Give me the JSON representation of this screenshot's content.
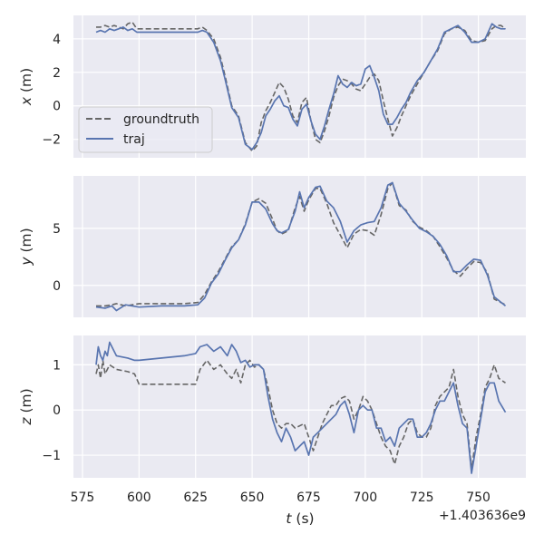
{
  "figure": {
    "xlabel_var": "t",
    "xlabel_unit": " (s)",
    "offset_label": "+1.403636e9",
    "x_ticks": [
      "575",
      "600",
      "625",
      "650",
      "675",
      "700",
      "725",
      "750"
    ],
    "legend": {
      "groundtruth": "groundtruth",
      "traj": "traj"
    },
    "colors": {
      "groundtruth": "#666666",
      "traj": "#5975b0",
      "panel_bg": "#eaeaf2",
      "grid": "#ffffff"
    }
  },
  "chart_data": [
    {
      "type": "line",
      "title": "",
      "xlabel": "",
      "ylabel_var": "x",
      "ylabel_unit": " (m)",
      "xlim": [
        571,
        771
      ],
      "ylim": [
        -3.1,
        5.4
      ],
      "y_ticks": [
        {
          "value": 4,
          "label": "4"
        },
        {
          "value": 2,
          "label": "2"
        },
        {
          "value": 0,
          "label": "0"
        },
        {
          "value": -2,
          "label": "−2"
        }
      ],
      "series": [
        {
          "name": "groundtruth",
          "style": "dashed",
          "x": [
            581,
            583,
            585,
            587,
            589,
            591,
            593,
            595,
            597,
            599,
            601,
            610,
            620,
            626,
            628,
            630,
            633,
            636,
            638,
            641,
            644,
            647,
            650,
            652,
            654,
            656,
            658,
            660,
            662,
            664,
            666,
            668,
            670,
            672,
            674,
            676,
            678,
            680,
            682,
            684,
            686,
            688,
            690,
            692,
            694,
            696,
            698,
            700,
            702,
            704,
            706,
            708,
            710,
            712,
            714,
            716,
            718,
            720,
            723,
            726,
            729,
            732,
            735,
            738,
            741,
            744,
            747,
            750,
            753,
            756,
            758,
            760,
            762
          ],
          "y": [
            4.7,
            4.7,
            4.8,
            4.7,
            4.8,
            4.7,
            4.6,
            4.9,
            5.0,
            4.6,
            4.6,
            4.6,
            4.6,
            4.6,
            4.7,
            4.5,
            4.0,
            2.9,
            1.8,
            0.0,
            -0.6,
            -2.2,
            -2.7,
            -2.4,
            -1.0,
            -0.3,
            0.2,
            0.8,
            1.4,
            1.1,
            0.4,
            -0.6,
            -1.0,
            0.2,
            0.5,
            -0.9,
            -2.0,
            -2.2,
            -1.5,
            -0.6,
            0.5,
            1.2,
            1.6,
            1.5,
            1.3,
            1.0,
            0.9,
            1.3,
            1.7,
            1.9,
            1.5,
            0.3,
            -0.8,
            -1.8,
            -1.3,
            -0.6,
            0.0,
            0.6,
            1.3,
            2.0,
            2.7,
            3.3,
            4.3,
            4.6,
            4.7,
            4.5,
            3.9,
            3.8,
            3.9,
            4.6,
            4.8,
            4.8,
            4.6
          ]
        },
        {
          "name": "traj",
          "style": "solid",
          "x": [
            581,
            583,
            585,
            587,
            589,
            591,
            593,
            595,
            597,
            599,
            601,
            610,
            620,
            626,
            628,
            630,
            633,
            636,
            638,
            641,
            644,
            647,
            650,
            652,
            654,
            656,
            658,
            660,
            662,
            664,
            666,
            668,
            670,
            672,
            674,
            676,
            678,
            680,
            682,
            684,
            686,
            688,
            690,
            692,
            694,
            696,
            698,
            700,
            702,
            704,
            706,
            708,
            710,
            712,
            714,
            716,
            718,
            720,
            723,
            726,
            729,
            732,
            735,
            738,
            741,
            744,
            747,
            750,
            753,
            756,
            758,
            760,
            762
          ],
          "y": [
            4.4,
            4.5,
            4.4,
            4.6,
            4.5,
            4.6,
            4.7,
            4.5,
            4.6,
            4.4,
            4.4,
            4.4,
            4.4,
            4.4,
            4.5,
            4.4,
            3.8,
            2.7,
            1.6,
            -0.1,
            -0.7,
            -2.3,
            -2.6,
            -2.2,
            -1.6,
            -0.6,
            -0.2,
            0.3,
            0.6,
            0.0,
            -0.1,
            -0.8,
            -1.2,
            -0.2,
            0.1,
            -0.9,
            -1.7,
            -2.0,
            -1.2,
            -0.2,
            0.7,
            1.8,
            1.3,
            1.1,
            1.4,
            1.2,
            1.3,
            2.2,
            2.4,
            1.7,
            0.9,
            -0.5,
            -1.1,
            -1.1,
            -0.7,
            -0.2,
            0.2,
            0.8,
            1.5,
            2.0,
            2.7,
            3.4,
            4.4,
            4.6,
            4.8,
            4.4,
            3.8,
            3.8,
            4.0,
            4.9,
            4.7,
            4.6,
            4.6
          ]
        }
      ]
    },
    {
      "type": "line",
      "title": "",
      "xlabel": "",
      "ylabel_var": "y",
      "ylabel_unit": " (m)",
      "xlim": [
        571,
        771
      ],
      "ylim": [
        -2.8,
        9.6
      ],
      "y_ticks": [
        {
          "value": 5,
          "label": "5"
        },
        {
          "value": 0,
          "label": "0"
        }
      ],
      "series": [
        {
          "name": "groundtruth",
          "style": "dashed",
          "x": [
            581,
            585,
            588,
            590,
            594,
            600,
            610,
            620,
            626,
            629,
            632,
            635,
            638,
            641,
            644,
            647,
            650,
            653,
            656,
            659,
            661,
            663,
            666,
            669,
            671,
            673,
            675,
            678,
            680,
            683,
            686,
            689,
            692,
            695,
            698,
            701,
            704,
            707,
            710,
            712,
            715,
            718,
            721,
            724,
            727,
            730,
            733,
            736,
            739,
            742,
            745,
            748,
            751,
            754,
            757,
            762
          ],
          "y": [
            -1.8,
            -1.8,
            -1.7,
            -1.6,
            -1.8,
            -1.6,
            -1.6,
            -1.6,
            -1.5,
            -0.8,
            0.3,
            1.2,
            2.3,
            3.4,
            4.0,
            5.4,
            7.3,
            7.6,
            7.2,
            5.8,
            4.8,
            4.5,
            4.8,
            6.8,
            7.8,
            6.5,
            7.5,
            8.5,
            8.5,
            7.2,
            5.5,
            4.4,
            3.3,
            4.5,
            4.9,
            4.8,
            4.4,
            6.2,
            8.5,
            9.0,
            7.0,
            6.6,
            5.6,
            5.1,
            4.8,
            4.3,
            3.4,
            2.4,
            1.3,
            0.8,
            1.5,
            2.1,
            2.0,
            1.1,
            -1.2,
            -1.7
          ]
        },
        {
          "name": "traj",
          "style": "solid",
          "x": [
            581,
            585,
            588,
            590,
            594,
            600,
            610,
            620,
            626,
            629,
            632,
            635,
            638,
            641,
            644,
            647,
            650,
            653,
            656,
            659,
            661,
            663,
            666,
            669,
            671,
            673,
            675,
            678,
            680,
            683,
            686,
            689,
            692,
            695,
            698,
            701,
            704,
            707,
            710,
            712,
            715,
            718,
            721,
            724,
            727,
            730,
            733,
            736,
            739,
            742,
            745,
            748,
            751,
            754,
            757,
            762
          ],
          "y": [
            -1.9,
            -2.0,
            -1.8,
            -2.2,
            -1.7,
            -1.9,
            -1.8,
            -1.8,
            -1.7,
            -1.1,
            0.2,
            1.0,
            2.2,
            3.3,
            4.0,
            5.3,
            7.3,
            7.3,
            6.7,
            5.4,
            4.8,
            4.6,
            4.9,
            6.5,
            8.2,
            6.8,
            7.7,
            8.6,
            8.7,
            7.4,
            6.8,
            5.6,
            3.8,
            4.8,
            5.3,
            5.5,
            5.6,
            6.8,
            8.8,
            9.0,
            7.2,
            6.5,
            5.7,
            5.0,
            4.7,
            4.3,
            3.6,
            2.6,
            1.2,
            1.2,
            1.8,
            2.3,
            2.2,
            0.9,
            -1.0,
            -1.8
          ]
        }
      ]
    },
    {
      "type": "line",
      "title": "",
      "xlabel": "",
      "ylabel_var": "z",
      "ylabel_unit": " (m)",
      "xlim": [
        571,
        771
      ],
      "ylim": [
        -1.5,
        1.65
      ],
      "y_ticks": [
        {
          "value": 1,
          "label": "1"
        },
        {
          "value": 0,
          "label": "0"
        },
        {
          "value": -1,
          "label": "−1"
        }
      ],
      "series": [
        {
          "name": "groundtruth",
          "style": "dashed",
          "x": [
            581,
            582,
            583,
            584,
            585,
            586,
            587,
            590,
            595,
            598,
            600,
            610,
            620,
            625,
            627,
            630,
            633,
            636,
            639,
            641,
            643,
            645,
            647,
            649,
            651,
            653,
            655,
            657,
            659,
            661,
            663,
            665,
            667,
            669,
            671,
            673,
            675,
            677,
            679,
            681,
            683,
            685,
            687,
            689,
            691,
            693,
            695,
            697,
            699,
            701,
            703,
            705,
            707,
            709,
            711,
            713,
            715,
            717,
            719,
            721,
            723,
            725,
            727,
            729,
            731,
            733,
            735,
            737,
            739,
            741,
            743,
            745,
            747,
            749,
            751,
            753,
            755,
            757,
            759,
            762
          ],
          "y": [
            0.8,
            1.0,
            0.7,
            1.1,
            0.8,
            0.9,
            1.0,
            0.9,
            0.85,
            0.8,
            0.57,
            0.57,
            0.57,
            0.57,
            0.9,
            1.1,
            0.9,
            1.0,
            0.8,
            0.7,
            0.9,
            0.6,
            1.0,
            1.1,
            0.95,
            1.0,
            0.9,
            0.5,
            0.0,
            -0.3,
            -0.4,
            -0.3,
            -0.3,
            -0.4,
            -0.35,
            -0.3,
            -0.6,
            -0.9,
            -0.6,
            -0.3,
            -0.1,
            0.1,
            0.1,
            0.25,
            0.3,
            0.2,
            -0.2,
            0.0,
            0.3,
            0.2,
            0.0,
            -0.3,
            -0.6,
            -0.8,
            -0.9,
            -1.2,
            -0.8,
            -0.6,
            -0.3,
            -0.2,
            -0.5,
            -0.6,
            -0.6,
            -0.4,
            0.1,
            0.3,
            0.4,
            0.5,
            0.9,
            0.3,
            -0.1,
            -0.3,
            -1.3,
            -0.6,
            -0.1,
            0.5,
            0.7,
            1.0,
            0.7,
            0.6
          ]
        },
        {
          "name": "traj",
          "style": "solid",
          "x": [
            581,
            582,
            583,
            584,
            585,
            586,
            587,
            590,
            595,
            598,
            600,
            610,
            620,
            625,
            627,
            630,
            633,
            636,
            639,
            641,
            643,
            645,
            647,
            649,
            651,
            653,
            655,
            657,
            659,
            661,
            663,
            665,
            667,
            669,
            671,
            673,
            675,
            677,
            679,
            681,
            683,
            685,
            687,
            689,
            691,
            693,
            695,
            697,
            699,
            701,
            703,
            705,
            707,
            709,
            711,
            713,
            715,
            717,
            719,
            721,
            723,
            725,
            727,
            729,
            731,
            733,
            735,
            737,
            739,
            741,
            743,
            745,
            747,
            749,
            751,
            753,
            755,
            757,
            759,
            762
          ],
          "y": [
            1.0,
            1.4,
            1.2,
            1.1,
            1.3,
            1.2,
            1.5,
            1.2,
            1.15,
            1.1,
            1.1,
            1.15,
            1.2,
            1.25,
            1.4,
            1.45,
            1.3,
            1.4,
            1.2,
            1.45,
            1.3,
            1.05,
            1.1,
            0.95,
            1.0,
            1.0,
            0.9,
            0.3,
            -0.2,
            -0.5,
            -0.7,
            -0.4,
            -0.6,
            -0.9,
            -0.8,
            -0.7,
            -1.0,
            -0.6,
            -0.5,
            -0.4,
            -0.3,
            -0.2,
            -0.1,
            0.1,
            0.2,
            -0.1,
            -0.5,
            0.0,
            0.1,
            0.0,
            0.0,
            -0.4,
            -0.4,
            -0.7,
            -0.6,
            -0.8,
            -0.4,
            -0.3,
            -0.2,
            -0.2,
            -0.6,
            -0.6,
            -0.5,
            -0.3,
            0.0,
            0.2,
            0.2,
            0.4,
            0.6,
            0.1,
            -0.3,
            -0.4,
            -1.4,
            -0.8,
            -0.2,
            0.4,
            0.6,
            0.6,
            0.2,
            -0.05
          ]
        }
      ]
    }
  ]
}
